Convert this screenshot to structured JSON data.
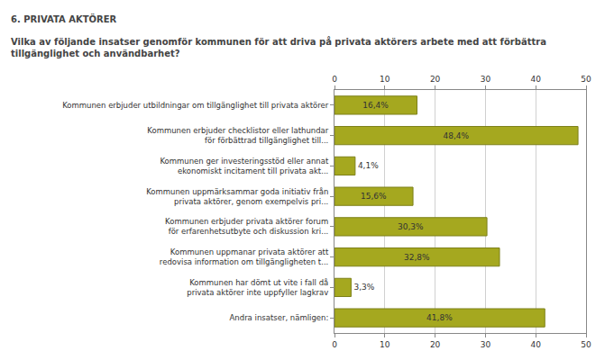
{
  "chart_data": {
    "type": "bar",
    "title": "6. PRIVATA AKTÖRER",
    "subtitle": "Vilka av följande insatser genomför kommunen för att driva på privata aktörers arbete med att förbättra\ntillgänglighet och användbarhet?",
    "orientation": "horizontal",
    "categories": [
      "Kommunen erbjuder utbildningar om tillgänglighet till privata aktörer",
      "Kommunen erbjuder checklistor eller lathundar\nför förbättrad tillgänglighet till...",
      "Kommunen ger investeringsstöd eller annat\nekonomiskt incitament till privata akt...",
      "Kommunen uppmärksammar goda initiativ från\nprivata aktörer, genom exempelvis pri...",
      "Kommunen erbjuder privata aktörer forum\nför erfarenhetsutbyte och diskussion kri...",
      "Kommunen uppmanar privata aktörer att\nredovisa information om tillgängligheten t...",
      "Kommunen har dömt ut vite i fall då\nprivata aktörer inte uppfyller lagkrav",
      "Andra insatser, nämligen:"
    ],
    "values": [
      16.4,
      48.4,
      4.1,
      15.6,
      30.3,
      32.8,
      3.3,
      41.8
    ],
    "value_labels": [
      "16,4%",
      "48,4%",
      "4,1%",
      "15,6%",
      "30,3%",
      "32,8%",
      "3,3%",
      "41,8%"
    ],
    "data_labels": true,
    "color": "#a5a81f",
    "xlim": [
      0,
      50
    ],
    "xticks": [
      0,
      10,
      20,
      30,
      40,
      50
    ],
    "grid": true
  }
}
